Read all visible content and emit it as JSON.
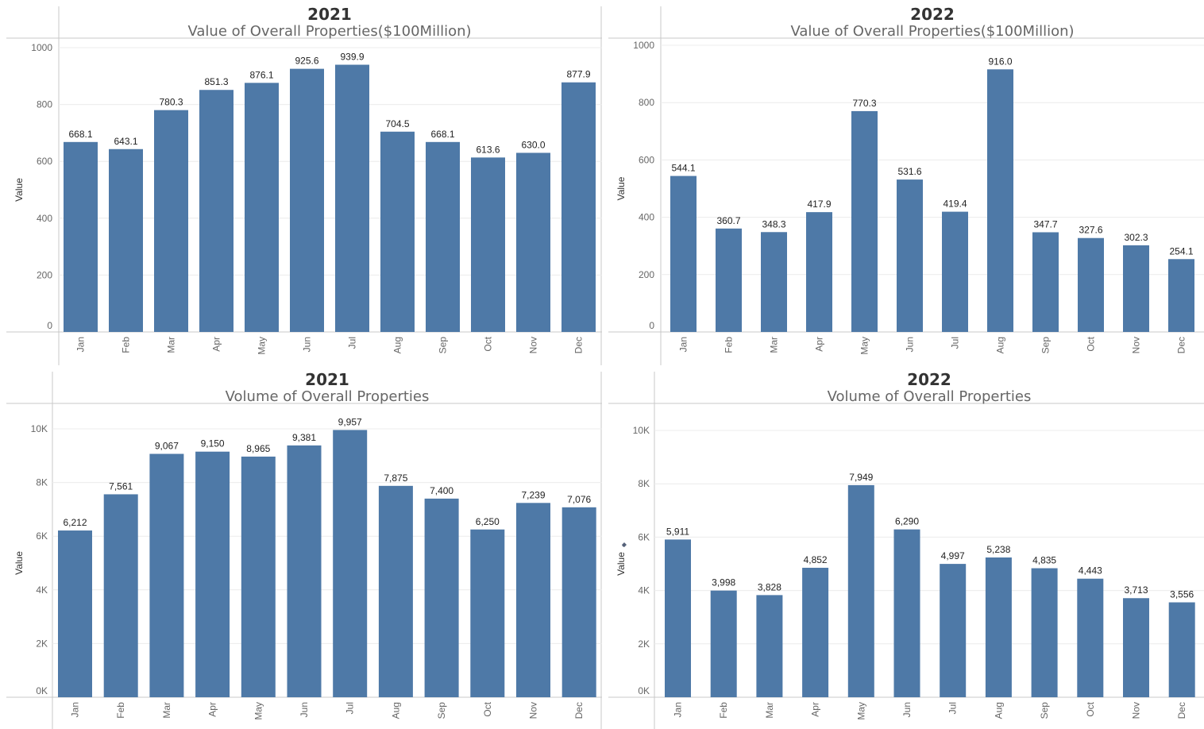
{
  "chart_data": [
    {
      "type": "bar",
      "title": "2021",
      "subtitle": "Value of Overall Properties($100Million)",
      "ylabel": "Value",
      "categories": [
        "Jan",
        "Feb",
        "Mar",
        "Apr",
        "May",
        "Jun",
        "Jul",
        "Aug",
        "Sep",
        "Oct",
        "Nov",
        "Dec"
      ],
      "values": [
        668.1,
        643.1,
        780.3,
        851.3,
        876.1,
        925.6,
        939.9,
        704.5,
        668.1,
        613.6,
        630.0,
        877.9
      ],
      "data_labels": [
        "668.1",
        "643.1",
        "780.3",
        "851.3",
        "876.1",
        "925.6",
        "939.9",
        "704.5",
        "668.1",
        "613.6",
        "630.0",
        "877.9"
      ],
      "yticks": [
        0,
        200,
        400,
        600,
        800,
        1000
      ],
      "ytick_labels": [
        "0",
        "200",
        "400",
        "600",
        "800",
        "1000"
      ],
      "ylim": [
        0,
        1000
      ],
      "grid": true,
      "bar_color": "#4e79a7"
    },
    {
      "type": "bar",
      "title": "2022",
      "subtitle": "Value of Overall Properties($100Million)",
      "ylabel": "Value",
      "categories": [
        "Jan",
        "Feb",
        "Mar",
        "Apr",
        "May",
        "Jun",
        "Jul",
        "Aug",
        "Sep",
        "Oct",
        "Nov",
        "Dec"
      ],
      "values": [
        544.1,
        360.7,
        348.3,
        417.9,
        770.3,
        531.6,
        419.4,
        916.0,
        347.7,
        327.6,
        302.3,
        254.1
      ],
      "data_labels": [
        "544.1",
        "360.7",
        "348.3",
        "417.9",
        "770.3",
        "531.6",
        "419.4",
        "916.0",
        "347.7",
        "327.6",
        "302.3",
        "254.1"
      ],
      "yticks": [
        0,
        200,
        400,
        600,
        800,
        1000
      ],
      "ytick_labels": [
        "0",
        "200",
        "400",
        "600",
        "800",
        "1000"
      ],
      "ylim": [
        0,
        1000
      ],
      "grid": true,
      "bar_color": "#4e79a7"
    },
    {
      "type": "bar",
      "title": "2021",
      "subtitle": "Volume of Overall Properties",
      "ylabel": "Value",
      "categories": [
        "Jan",
        "Feb",
        "Mar",
        "Apr",
        "May",
        "Jun",
        "Jul",
        "Aug",
        "Sep",
        "Oct",
        "Nov",
        "Dec"
      ],
      "values": [
        6212,
        7561,
        9067,
        9150,
        8965,
        9381,
        9957,
        7875,
        7400,
        6250,
        7239,
        7076
      ],
      "data_labels": [
        "6,212",
        "7,561",
        "9,067",
        "9,150",
        "8,965",
        "9,381",
        "9,957",
        "7,875",
        "7,400",
        "6,250",
        "7,239",
        "7,076"
      ],
      "yticks": [
        0,
        2000,
        4000,
        6000,
        8000,
        10000
      ],
      "ytick_labels": [
        "0K",
        "2K",
        "4K",
        "6K",
        "8K",
        "10K"
      ],
      "ylim": [
        0,
        10000
      ],
      "grid": true,
      "bar_color": "#4e79a7"
    },
    {
      "type": "bar",
      "title": "2022",
      "subtitle": "Volume of Overall Properties",
      "ylabel": "Value",
      "categories": [
        "Jan",
        "Feb",
        "Mar",
        "Apr",
        "May",
        "Jun",
        "Jul",
        "Aug",
        "Sep",
        "Oct",
        "Nov",
        "Dec"
      ],
      "values": [
        5911,
        3998,
        3828,
        4852,
        7949,
        6290,
        4997,
        5238,
        4835,
        4443,
        3713,
        3556
      ],
      "data_labels": [
        "5,911",
        "3,998",
        "3,828",
        "4,852",
        "7,949",
        "6,290",
        "4,997",
        "5,238",
        "4,835",
        "4,443",
        "3,713",
        "3,556"
      ],
      "yticks": [
        0,
        2000,
        4000,
        6000,
        8000,
        10000
      ],
      "ytick_labels": [
        "0K",
        "2K",
        "4K",
        "6K",
        "8K",
        "10K"
      ],
      "ylim": [
        0,
        10000
      ],
      "grid": true,
      "bar_color": "#4e79a7",
      "pin_icon": "pin-icon"
    }
  ]
}
